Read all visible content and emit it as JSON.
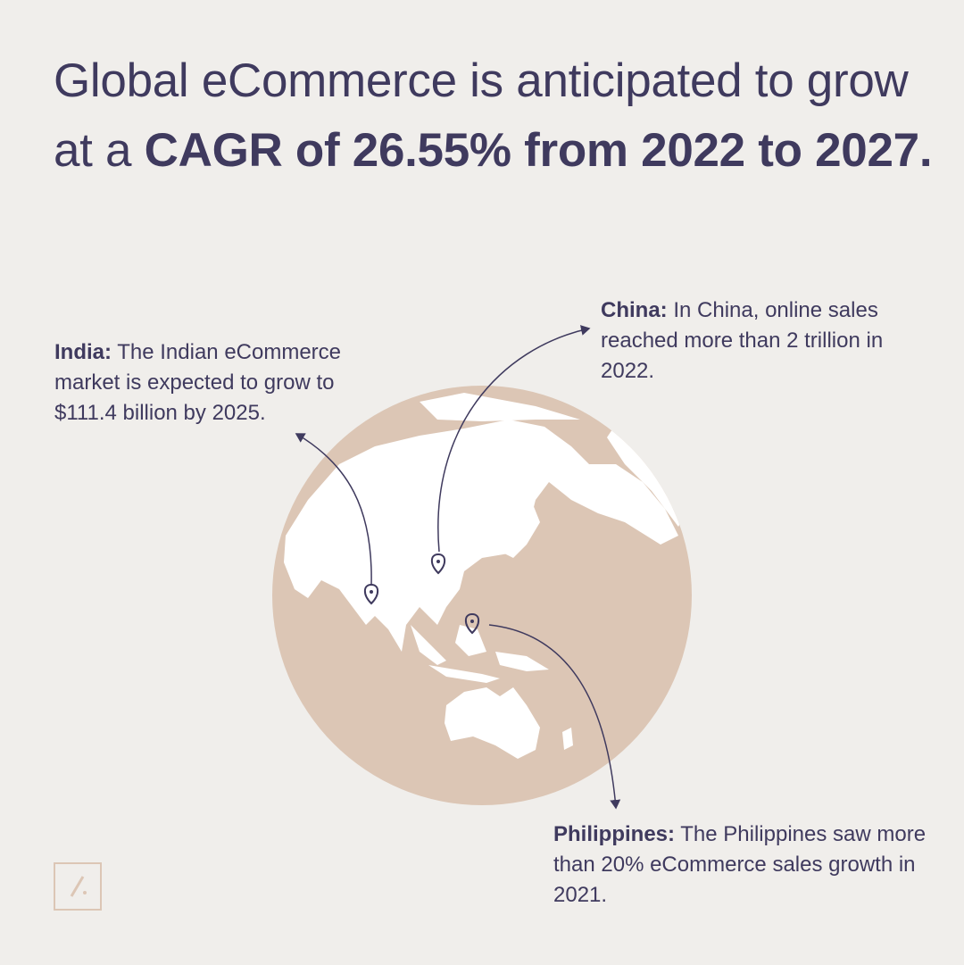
{
  "headline": {
    "regular": "Global eCommerce is anticipated to grow at a",
    "bold": "CAGR of 26.55% from 2022 to 2027."
  },
  "callouts": [
    {
      "country": "India:",
      "text": "The Indian eCommerce market is expected to grow to $111.4 billion by 2025."
    },
    {
      "country": "China:",
      "text": "In China, online sales reached more than 2 trillion in 2022."
    },
    {
      "country": "Philippines:",
      "text": "The Philippines saw more than 20% eCommerce sales growth in 2021."
    }
  ]
}
